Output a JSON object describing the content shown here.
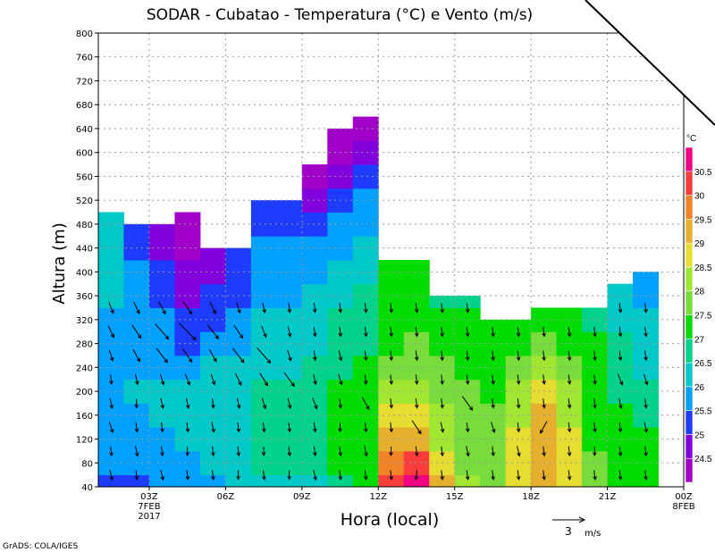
{
  "chart_data": {
    "type": "heatmap",
    "title": "SODAR - Cubatao - Temperatura (°C) e Vento (m/s)",
    "xlabel": "Hora (local)",
    "ylabel": "Altura (m)",
    "xlim_hours": [
      1,
      24
    ],
    "ylim": [
      40,
      800
    ],
    "grid": true,
    "x_ticks": [
      {
        "hour": 3,
        "label": "03Z",
        "sub1": "7FEB",
        "sub2": "2017"
      },
      {
        "hour": 6,
        "label": "06Z"
      },
      {
        "hour": 9,
        "label": "09Z"
      },
      {
        "hour": 12,
        "label": "12Z"
      },
      {
        "hour": 15,
        "label": "15Z"
      },
      {
        "hour": 18,
        "label": "18Z"
      },
      {
        "hour": 21,
        "label": "21Z"
      },
      {
        "hour": 24,
        "label": "00Z",
        "sub1": "8FEB"
      }
    ],
    "y_ticks": [
      40,
      80,
      120,
      160,
      200,
      240,
      280,
      320,
      360,
      400,
      440,
      480,
      520,
      560,
      600,
      640,
      680,
      720,
      760,
      800
    ],
    "legend": {
      "unit": "°C",
      "placement": "top-right",
      "levels": [
        24.5,
        25,
        25.5,
        26,
        26.5,
        27,
        27.5,
        28,
        28.5,
        29,
        29.5,
        30,
        30.5
      ],
      "labels": [
        "24.5",
        "25",
        "25.5",
        "26",
        "26.5",
        "27",
        "27.5",
        "28",
        "28.5",
        "29",
        "29.5",
        "30",
        "30.5"
      ],
      "colors": [
        "#a000c8",
        "#8200dc",
        "#1e3cff",
        "#00a0ff",
        "#00c8c8",
        "#00d28c",
        "#00dc00",
        "#78dc3c",
        "#a0e632",
        "#e6dc32",
        "#e6af2d",
        "#f08228",
        "#fa3c3c",
        "#f00082"
      ]
    },
    "level_step_m": 40,
    "columns": [
      {
        "hour": 1,
        "top": 500,
        "temps": [
          25.2,
          25.6,
          25.7,
          25.7,
          25.8,
          25.8,
          25.9,
          25.9,
          26.0,
          26.1,
          26.1,
          26.2
        ]
      },
      {
        "hour": 2,
        "top": 480,
        "temps": [
          25.3,
          25.7,
          25.8,
          25.9,
          26.0,
          25.9,
          25.8,
          25.7,
          25.6,
          25.5,
          25.4,
          25.3
        ]
      },
      {
        "hour": 3,
        "top": 480,
        "temps": [
          25.6,
          25.8,
          25.9,
          26.0,
          26.0,
          25.9,
          25.7,
          25.5,
          25.3,
          25.0,
          24.8,
          24.7
        ]
      },
      {
        "hour": 4,
        "top": 500,
        "temps": [
          25.7,
          25.9,
          26.1,
          26.2,
          26.1,
          25.8,
          25.4,
          25.1,
          24.8,
          24.5,
          24.4,
          24.3
        ]
      },
      {
        "hour": 5,
        "top": 440,
        "temps": [
          25.8,
          26.0,
          26.2,
          26.3,
          26.2,
          26.0,
          25.6,
          25.3,
          25.0,
          24.8,
          24.9
        ]
      },
      {
        "hour": 6,
        "top": 440,
        "temps": [
          26.0,
          26.1,
          26.3,
          26.4,
          26.3,
          26.1,
          25.8,
          25.5,
          25.2,
          25.0,
          25.1
        ]
      },
      {
        "hour": 7,
        "top": 520,
        "temps": [
          26.2,
          26.5,
          26.7,
          26.6,
          26.5,
          26.3,
          26.1,
          26.0,
          25.9,
          25.7,
          25.5,
          25.4,
          25.3
        ]
      },
      {
        "hour": 8,
        "top": 520,
        "temps": [
          26.3,
          26.6,
          26.8,
          26.7,
          26.6,
          26.4,
          26.2,
          26.0,
          25.9,
          25.7,
          25.5,
          25.3,
          25.1
        ]
      },
      {
        "hour": 9,
        "top": 580,
        "temps": [
          26.4,
          26.7,
          26.9,
          26.8,
          26.7,
          26.5,
          26.3,
          26.2,
          26.0,
          25.8,
          25.6,
          25.3,
          24.9,
          24.4
        ]
      },
      {
        "hour": 10,
        "top": 640,
        "temps": [
          26.8,
          27.1,
          27.2,
          27.1,
          27.0,
          26.9,
          26.7,
          26.5,
          26.3,
          26.1,
          25.8,
          25.5,
          25.2,
          24.8,
          24.4,
          24.2
        ]
      },
      {
        "hour": 11,
        "top": 660,
        "temps": [
          27.3,
          27.4,
          27.3,
          27.2,
          27.2,
          27.1,
          26.9,
          26.7,
          26.5,
          26.3,
          26.0,
          25.8,
          25.5,
          25.0,
          24.6,
          24.3
        ]
      },
      {
        "hour": 12,
        "top": 420,
        "temps": [
          30.2,
          29.6,
          29.0,
          28.5,
          28.0,
          27.7,
          27.4,
          27.2,
          27.1,
          27.0
        ]
      },
      {
        "hour": 13,
        "top": 420,
        "temps": [
          30.8,
          30.1,
          29.4,
          28.8,
          28.2,
          27.8,
          27.5,
          27.3,
          27.1,
          27.0
        ]
      },
      {
        "hour": 14,
        "top": 360,
        "temps": [
          29.0,
          28.7,
          28.4,
          28.1,
          27.8,
          27.6,
          27.3,
          27.1,
          26.9
        ]
      },
      {
        "hour": 15,
        "top": 360,
        "temps": [
          28.0,
          27.9,
          27.8,
          27.7,
          27.5,
          27.3,
          27.1,
          27.0,
          26.9
        ]
      },
      {
        "hour": 16,
        "top": 320,
        "temps": [
          27.8,
          27.7,
          27.6,
          27.5,
          27.4,
          27.2,
          27.1,
          27.0
        ]
      },
      {
        "hour": 17,
        "top": 320,
        "temps": [
          28.6,
          28.5,
          28.5,
          28.3,
          28.0,
          27.7,
          27.3,
          27.1
        ]
      },
      {
        "hour": 18,
        "top": 340,
        "temps": [
          29.0,
          29.2,
          29.4,
          29.3,
          28.9,
          28.2,
          27.6,
          27.2
        ]
      },
      {
        "hour": 19,
        "top": 340,
        "temps": [
          28.5,
          28.6,
          28.7,
          28.4,
          28.0,
          27.5,
          27.2,
          27.0
        ]
      },
      {
        "hour": 20,
        "top": 340,
        "temps": [
          27.6,
          27.5,
          27.4,
          27.3,
          27.2,
          27.1,
          27.0,
          26.9
        ]
      },
      {
        "hour": 21,
        "top": 380,
        "temps": [
          27.3,
          27.2,
          27.1,
          27.0,
          26.9,
          26.7,
          26.5,
          26.3,
          26.1
        ]
      },
      {
        "hour": 22,
        "top": 400,
        "temps": [
          27.2,
          27.1,
          27.0,
          26.8,
          26.6,
          26.4,
          26.2,
          26.0,
          25.9,
          25.8
        ]
      }
    ],
    "wind": {
      "levels_m": [
        60,
        100,
        140,
        180,
        220,
        260,
        300,
        340
      ],
      "u": [
        [
          0.2,
          0.1,
          0.3,
          0.2,
          0.1,
          0.3,
          0.5,
          0.4
        ],
        [
          0.1,
          0.2,
          0.1,
          0.0,
          0.2,
          0.6,
          0.8,
          0.5
        ],
        [
          0.2,
          0.1,
          0.1,
          0.2,
          0.3,
          1.0,
          1.2,
          0.6
        ],
        [
          0.1,
          0.0,
          0.1,
          0.2,
          0.4,
          0.8,
          1.5,
          0.8
        ],
        [
          0.1,
          0.1,
          0.2,
          0.1,
          0.3,
          0.6,
          1.0,
          0.5
        ],
        [
          0.0,
          0.1,
          0.1,
          0.2,
          0.5,
          1.0,
          0.8,
          0.3
        ],
        [
          0.1,
          0.0,
          0.1,
          0.3,
          0.7,
          1.2,
          0.4,
          0.2
        ],
        [
          0.0,
          0.1,
          0.1,
          0.2,
          0.9,
          0.3,
          0.2,
          0.1
        ],
        [
          0.2,
          0.1,
          0.1,
          0.4,
          0.2,
          0.1,
          0.1,
          0.1
        ],
        [
          0.1,
          0.1,
          0.0,
          0.1,
          0.3,
          0.2,
          0.1,
          0.1
        ],
        [
          0.1,
          0.2,
          0.1,
          0.6,
          0.1,
          0.1,
          0.1,
          0.1
        ],
        [
          0.1,
          0.0,
          0.1,
          0.1,
          0.1,
          0.1,
          0.1,
          0.1
        ],
        [
          -0.1,
          0.1,
          0.8,
          0.1,
          0.1,
          0.1,
          0.1,
          0.1
        ],
        [
          0.1,
          0.1,
          0.2,
          0.1,
          0.1,
          0.1,
          0.1,
          0.1
        ],
        [
          0.1,
          0.2,
          0.1,
          0.9,
          0.1,
          0.1,
          0.1,
          0.1
        ],
        [
          0.1,
          0.1,
          0.3,
          0.1,
          0.1,
          0.1,
          0.1,
          0.1
        ],
        [
          0.1,
          0.2,
          0.1,
          0.1,
          0.1,
          0.1,
          0.1,
          0.1
        ],
        [
          0.1,
          0.1,
          -0.6,
          0.1,
          0.1,
          0.1,
          0.1,
          0.1
        ],
        [
          0.1,
          0.1,
          0.1,
          0.1,
          0.1,
          0.1,
          0.1,
          0.1
        ],
        [
          0.1,
          0.0,
          0.1,
          0.1,
          0.1,
          0.1,
          0.1,
          0.1
        ],
        [
          0.1,
          0.1,
          0.1,
          0.2,
          0.4,
          0.1,
          0.1,
          0.1
        ],
        [
          0.1,
          0.1,
          0.2,
          0.1,
          0.3,
          0.1,
          0.1,
          0.1
        ]
      ],
      "v": -0.8,
      "reference": {
        "value": 3,
        "label": "3",
        "unit": "m/s"
      }
    }
  },
  "footer": {
    "credit": "GrADS: COLA/IGES"
  }
}
